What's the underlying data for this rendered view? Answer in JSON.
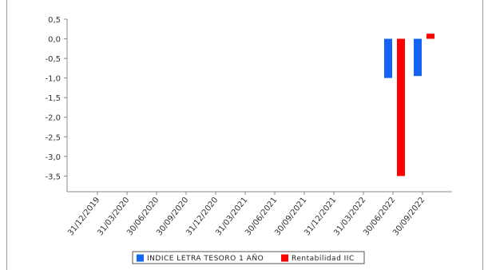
{
  "chart_data": {
    "type": "bar",
    "title": "",
    "xlabel": "",
    "ylabel": "",
    "ylim": [
      -3.9,
      0.5
    ],
    "yticks": [
      "0,5",
      "0,0",
      "-0,5",
      "-1,0",
      "-1,5",
      "-2,0",
      "-2,5",
      "-3,0",
      "-3,5"
    ],
    "ytick_values": [
      0.5,
      0.0,
      -0.5,
      -1.0,
      -1.5,
      -2.0,
      -2.5,
      -3.0,
      -3.5
    ],
    "categories": [
      "31/12/2019",
      "31/03/2020",
      "30/06/2020",
      "30/09/2020",
      "31/12/2020",
      "31/03/2021",
      "30/06/2021",
      "30/09/2021",
      "31/12/2021",
      "31/03/2022",
      "30/06/2022",
      "30/09/2022"
    ],
    "series": [
      {
        "name": "INDICE LETRA TESORO 1 AÑO",
        "color": "#1464f4",
        "values": [
          null,
          null,
          null,
          null,
          null,
          null,
          null,
          null,
          null,
          null,
          -1.0,
          -0.95
        ]
      },
      {
        "name": "Rentabilidad IIC",
        "color": "#ff0000",
        "values": [
          null,
          null,
          null,
          null,
          null,
          null,
          null,
          null,
          null,
          null,
          -3.5,
          0.13
        ]
      }
    ],
    "grid": false,
    "legend": "bottom-center"
  }
}
